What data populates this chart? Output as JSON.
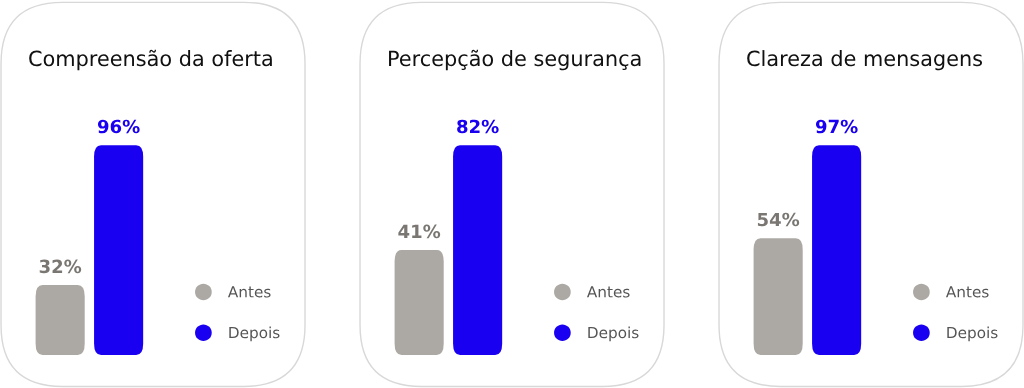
{
  "chart_data": [
    {
      "type": "bar",
      "title": "Compreensão da oferta",
      "categories": [
        null
      ],
      "legend": "right",
      "series": [
        {
          "name": "Antes",
          "color": "#aca8a4",
          "values": [
            32
          ],
          "value_labels": [
            "32%"
          ]
        },
        {
          "name": "Depois",
          "color": "#1a00f0",
          "values": [
            96
          ],
          "value_labels": [
            "96%"
          ]
        }
      ]
    },
    {
      "type": "bar",
      "title": "Percepção de segurança",
      "categories": [
        null
      ],
      "legend": "right",
      "series": [
        {
          "name": "Antes",
          "color": "#aca8a4",
          "values": [
            41
          ],
          "value_labels": [
            "41%"
          ]
        },
        {
          "name": "Depois",
          "color": "#1a00f0",
          "values": [
            82
          ],
          "value_labels": [
            "82%"
          ]
        }
      ]
    },
    {
      "type": "bar",
      "title": "Clareza de mensagens",
      "categories": [
        null
      ],
      "legend": "right",
      "series": [
        {
          "name": "Antes",
          "color": "#aca8a4",
          "values": [
            54
          ],
          "value_labels": [
            "54%"
          ]
        },
        {
          "name": "Depois",
          "color": "#1a00f0",
          "values": [
            97
          ],
          "value_labels": [
            "97%"
          ]
        }
      ]
    }
  ]
}
